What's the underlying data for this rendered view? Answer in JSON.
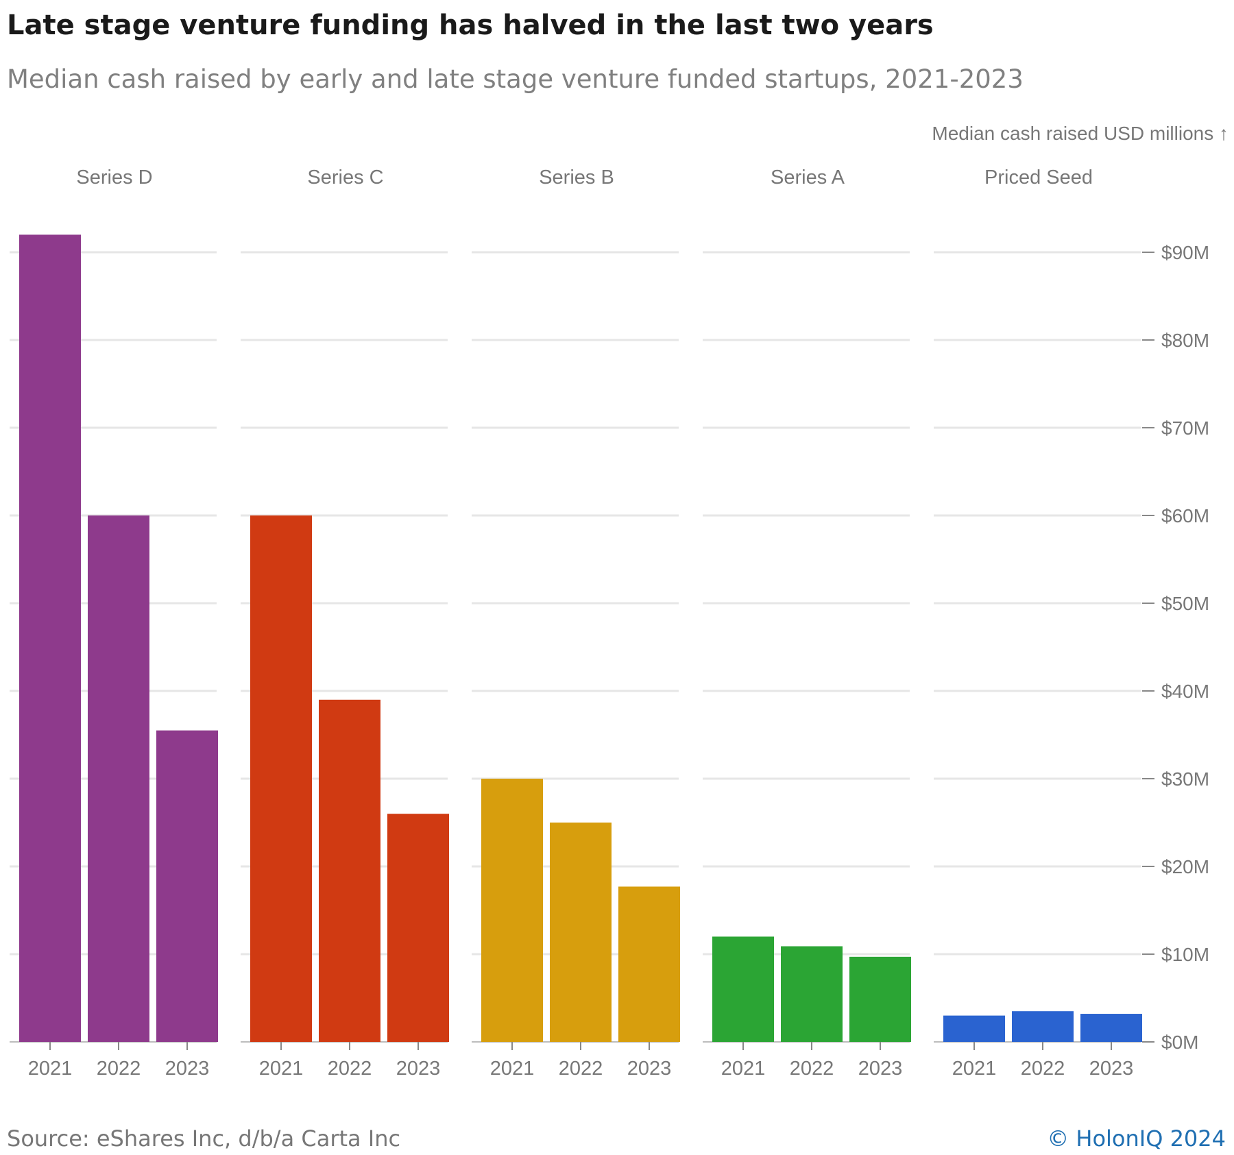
{
  "title": "Late stage venture funding has halved in the last two years",
  "subtitle": "Median cash raised by early and late stage venture funded startups, 2021-2023",
  "footer": {
    "source": "Source: eShares Inc, d/b/a Carta Inc",
    "credit": "© HolonIQ 2024"
  },
  "chart_data": {
    "type": "bar",
    "axis_label": "Median cash raised USD millions ↑",
    "y_ticks": [
      0,
      10,
      20,
      30,
      40,
      50,
      60,
      70,
      80,
      90
    ],
    "y_tick_labels": [
      "$0M",
      "$10M",
      "$20M",
      "$30M",
      "$40M",
      "$50M",
      "$60M",
      "$70M",
      "$80M",
      "$90M"
    ],
    "ylim": [
      0,
      92
    ],
    "grid": true,
    "facets": [
      {
        "name": "Series D",
        "color": "#8e3a8c",
        "categories": [
          "2021",
          "2022",
          "2023"
        ],
        "values": [
          92,
          60,
          35.5
        ]
      },
      {
        "name": "Series C",
        "color": "#d03a12",
        "categories": [
          "2021",
          "2022",
          "2023"
        ],
        "values": [
          60,
          39,
          26
        ]
      },
      {
        "name": "Series B",
        "color": "#d79e0d",
        "categories": [
          "2021",
          "2022",
          "2023"
        ],
        "values": [
          30,
          25,
          17.7
        ]
      },
      {
        "name": "Series A",
        "color": "#2ba534",
        "categories": [
          "2021",
          "2022",
          "2023"
        ],
        "values": [
          12,
          10.9,
          9.7
        ]
      },
      {
        "name": "Priced Seed",
        "color": "#2a63d0",
        "categories": [
          "2021",
          "2022",
          "2023"
        ],
        "values": [
          3,
          3.5,
          3.2
        ]
      }
    ]
  }
}
